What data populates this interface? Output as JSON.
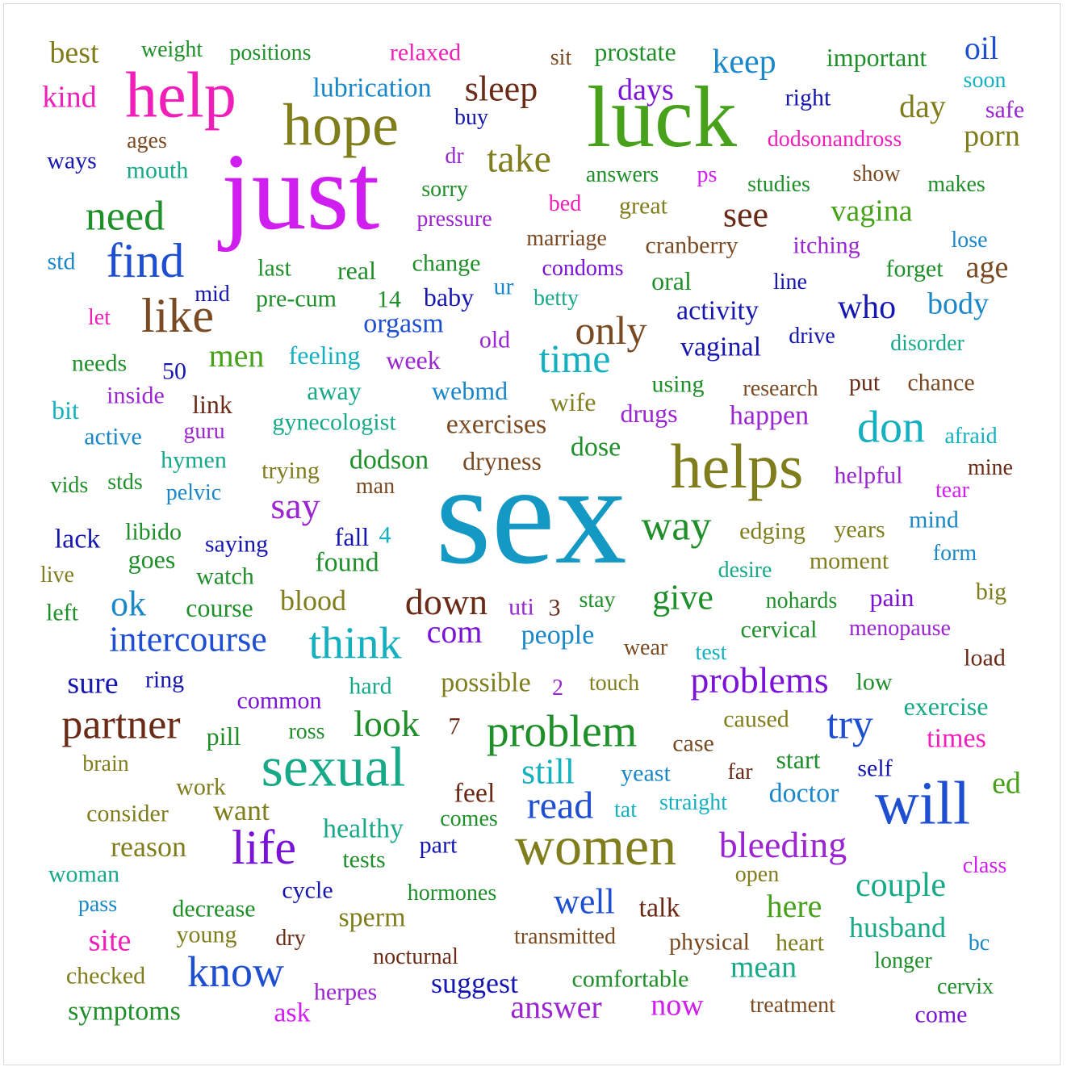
{
  "colors": {
    "teal": "#1399c4",
    "magenta": "#d01ef0",
    "green": "#47a11b",
    "olive": "#7f7d1c",
    "pink": "#f01fb9",
    "brown": "#6a2a16",
    "blue": "#1f4fd1",
    "purple": "#7b13d6",
    "navy": "#1616b0",
    "sea": "#18a989",
    "forest": "#1f8f2a",
    "skyblue": "#1a87c8",
    "tan": "#7a4a22",
    "violet": "#9a25d1",
    "cyan": "#15b0bf"
  },
  "words": [
    {
      "text": "sex",
      "color": "teal"
    },
    {
      "text": "just",
      "color": "magenta"
    },
    {
      "text": "luck",
      "color": "green"
    },
    {
      "text": "helps",
      "color": "olive"
    },
    {
      "text": "help",
      "color": "pink"
    },
    {
      "text": "hope",
      "color": "olive"
    },
    {
      "text": "will",
      "color": "blue"
    },
    {
      "text": "women",
      "color": "olive"
    },
    {
      "text": "sexual",
      "color": "sea"
    },
    {
      "text": "problem",
      "color": "forest"
    },
    {
      "text": "think",
      "color": "cyan"
    },
    {
      "text": "don",
      "color": "cyan"
    },
    {
      "text": "like",
      "color": "tan"
    },
    {
      "text": "find",
      "color": "blue"
    },
    {
      "text": "partner",
      "color": "brown"
    },
    {
      "text": "life",
      "color": "purple"
    },
    {
      "text": "intercourse",
      "color": "blue"
    },
    {
      "text": "bleeding",
      "color": "violet"
    },
    {
      "text": "need",
      "color": "forest"
    },
    {
      "text": "take",
      "color": "olive"
    },
    {
      "text": "know",
      "color": "blue"
    },
    {
      "text": "problems",
      "color": "purple"
    },
    {
      "text": "only",
      "color": "tan"
    },
    {
      "text": "time",
      "color": "cyan"
    },
    {
      "text": "try",
      "color": "blue"
    },
    {
      "text": "way",
      "color": "forest"
    },
    {
      "text": "say",
      "color": "violet"
    },
    {
      "text": "down",
      "color": "brown"
    },
    {
      "text": "well",
      "color": "blue"
    },
    {
      "text": "read",
      "color": "blue"
    },
    {
      "text": "see",
      "color": "brown"
    },
    {
      "text": "keep",
      "color": "skyblue"
    },
    {
      "text": "look",
      "color": "forest"
    },
    {
      "text": "give",
      "color": "forest"
    },
    {
      "text": "sleep",
      "color": "brown"
    },
    {
      "text": "still",
      "color": "cyan"
    },
    {
      "text": "couple",
      "color": "sea"
    },
    {
      "text": "who",
      "color": "navy"
    },
    {
      "text": "ok",
      "color": "skyblue"
    },
    {
      "text": "vagina",
      "color": "green"
    },
    {
      "text": "body",
      "color": "skyblue"
    },
    {
      "text": "com",
      "color": "purple"
    },
    {
      "text": "here",
      "color": "green"
    },
    {
      "text": "husband",
      "color": "sea"
    },
    {
      "text": "mean",
      "color": "sea"
    },
    {
      "text": "answer",
      "color": "violet"
    },
    {
      "text": "reason",
      "color": "olive"
    },
    {
      "text": "day",
      "color": "olive"
    },
    {
      "text": "porn",
      "color": "olive"
    },
    {
      "text": "days",
      "color": "purple"
    },
    {
      "text": "orgasm",
      "color": "blue"
    },
    {
      "text": "men",
      "color": "green"
    },
    {
      "text": "oil",
      "color": "blue"
    },
    {
      "text": "best",
      "color": "olive"
    },
    {
      "text": "kind",
      "color": "pink"
    },
    {
      "text": "ed",
      "color": "green"
    },
    {
      "text": "sure",
      "color": "navy"
    },
    {
      "text": "exercises",
      "color": "tan"
    },
    {
      "text": "blood",
      "color": "olive"
    },
    {
      "text": "want",
      "color": "olive"
    },
    {
      "text": "talk",
      "color": "brown"
    },
    {
      "text": "people",
      "color": "skyblue"
    },
    {
      "text": "now",
      "color": "magenta"
    },
    {
      "text": "suggest",
      "color": "navy"
    },
    {
      "text": "vaginal",
      "color": "navy"
    },
    {
      "text": "activity",
      "color": "navy"
    },
    {
      "text": "lubrication",
      "color": "skyblue"
    },
    {
      "text": "dodson",
      "color": "forest"
    },
    {
      "text": "sperm",
      "color": "olive"
    },
    {
      "text": "site",
      "color": "pink"
    },
    {
      "text": "age",
      "color": "tan"
    },
    {
      "text": "prostate",
      "color": "forest"
    },
    {
      "text": "important",
      "color": "forest"
    },
    {
      "text": "healthy",
      "color": "sea"
    },
    {
      "text": "doctor",
      "color": "skyblue"
    },
    {
      "text": "found",
      "color": "forest"
    },
    {
      "text": "symptoms",
      "color": "forest"
    },
    {
      "text": "possible",
      "color": "olive"
    },
    {
      "text": "webmd",
      "color": "skyblue"
    },
    {
      "text": "happen",
      "color": "violet"
    },
    {
      "text": "dryness",
      "color": "tan"
    },
    {
      "text": "dose",
      "color": "forest"
    },
    {
      "text": "pain",
      "color": "purple"
    },
    {
      "text": "start",
      "color": "forest"
    },
    {
      "text": "exercise",
      "color": "sea"
    },
    {
      "text": "times",
      "color": "pink"
    },
    {
      "text": "wife",
      "color": "olive"
    },
    {
      "text": "drugs",
      "color": "violet"
    },
    {
      "text": "feeling",
      "color": "cyan"
    },
    {
      "text": "oral",
      "color": "forest"
    },
    {
      "text": "baby",
      "color": "navy"
    },
    {
      "text": "away",
      "color": "sea"
    },
    {
      "text": "gynecologist",
      "color": "sea"
    },
    {
      "text": "helpful",
      "color": "violet"
    },
    {
      "text": "chance",
      "color": "tan"
    },
    {
      "text": "put",
      "color": "brown"
    },
    {
      "text": "years",
      "color": "olive"
    },
    {
      "text": "moment",
      "color": "olive"
    },
    {
      "text": "edging",
      "color": "olive"
    },
    {
      "text": "relaxed",
      "color": "pink"
    },
    {
      "text": "great",
      "color": "olive"
    },
    {
      "text": "marriage",
      "color": "tan"
    },
    {
      "text": "cranberry",
      "color": "tan"
    },
    {
      "text": "itching",
      "color": "violet"
    },
    {
      "text": "pressure",
      "color": "violet"
    },
    {
      "text": "condoms",
      "color": "purple"
    },
    {
      "text": "change",
      "color": "forest"
    },
    {
      "text": "real",
      "color": "forest"
    },
    {
      "text": "last",
      "color": "forest"
    },
    {
      "text": "pre-cum",
      "color": "forest"
    },
    {
      "text": "link",
      "color": "brown"
    },
    {
      "text": "bit",
      "color": "cyan"
    },
    {
      "text": "week",
      "color": "violet"
    },
    {
      "text": "using",
      "color": "forest"
    },
    {
      "text": "research",
      "color": "tan"
    },
    {
      "text": "disorder",
      "color": "sea"
    },
    {
      "text": "afraid",
      "color": "cyan"
    },
    {
      "text": "mine",
      "color": "brown"
    },
    {
      "text": "mind",
      "color": "skyblue"
    },
    {
      "text": "form",
      "color": "skyblue"
    },
    {
      "text": "desire",
      "color": "sea"
    },
    {
      "text": "nohards",
      "color": "forest"
    },
    {
      "text": "big",
      "color": "olive"
    },
    {
      "text": "cervical",
      "color": "forest"
    },
    {
      "text": "menopause",
      "color": "violet"
    },
    {
      "text": "wear",
      "color": "tan"
    },
    {
      "text": "test",
      "color": "cyan"
    },
    {
      "text": "load",
      "color": "brown"
    },
    {
      "text": "low",
      "color": "forest"
    },
    {
      "text": "caused",
      "color": "olive"
    },
    {
      "text": "case",
      "color": "tan"
    },
    {
      "text": "self",
      "color": "navy"
    },
    {
      "text": "far",
      "color": "brown"
    },
    {
      "text": "yeast",
      "color": "skyblue"
    },
    {
      "text": "straight",
      "color": "cyan"
    },
    {
      "text": "tat",
      "color": "cyan"
    },
    {
      "text": "comes",
      "color": "forest"
    },
    {
      "text": "feel",
      "color": "brown"
    },
    {
      "text": "part",
      "color": "navy"
    },
    {
      "text": "tests",
      "color": "forest"
    },
    {
      "text": "open",
      "color": "olive"
    },
    {
      "text": "class",
      "color": "magenta"
    },
    {
      "text": "hormones",
      "color": "forest"
    },
    {
      "text": "transmitted",
      "color": "tan"
    },
    {
      "text": "physical",
      "color": "tan"
    },
    {
      "text": "heart",
      "color": "olive"
    },
    {
      "text": "longer",
      "color": "forest"
    },
    {
      "text": "bc",
      "color": "skyblue"
    },
    {
      "text": "cervix",
      "color": "forest"
    },
    {
      "text": "treatment",
      "color": "tan"
    },
    {
      "text": "come",
      "color": "purple"
    },
    {
      "text": "comfortable",
      "color": "forest"
    },
    {
      "text": "nocturnal",
      "color": "brown"
    },
    {
      "text": "herpes",
      "color": "violet"
    },
    {
      "text": "ask",
      "color": "magenta"
    },
    {
      "text": "dry",
      "color": "brown"
    },
    {
      "text": "young",
      "color": "olive"
    },
    {
      "text": "decrease",
      "color": "forest"
    },
    {
      "text": "cycle",
      "color": "navy"
    },
    {
      "text": "checked",
      "color": "olive"
    },
    {
      "text": "pass",
      "color": "skyblue"
    },
    {
      "text": "woman",
      "color": "sea"
    },
    {
      "text": "consider",
      "color": "olive"
    },
    {
      "text": "work",
      "color": "olive"
    },
    {
      "text": "brain",
      "color": "olive"
    },
    {
      "text": "pill",
      "color": "forest"
    },
    {
      "text": "ross",
      "color": "forest"
    },
    {
      "text": "common",
      "color": "purple"
    },
    {
      "text": "ring",
      "color": "navy"
    },
    {
      "text": "hard",
      "color": "sea"
    },
    {
      "text": "touch",
      "color": "olive"
    },
    {
      "text": "2",
      "color": "violet"
    },
    {
      "text": "7",
      "color": "brown"
    },
    {
      "text": "course",
      "color": "forest"
    },
    {
      "text": "watch",
      "color": "forest"
    },
    {
      "text": "left",
      "color": "forest"
    },
    {
      "text": "live",
      "color": "olive"
    },
    {
      "text": "goes",
      "color": "forest"
    },
    {
      "text": "libido",
      "color": "forest"
    },
    {
      "text": "lack",
      "color": "navy"
    },
    {
      "text": "saying",
      "color": "navy"
    },
    {
      "text": "fall",
      "color": "navy"
    },
    {
      "text": "4",
      "color": "cyan"
    },
    {
      "text": "uti",
      "color": "violet"
    },
    {
      "text": "3",
      "color": "brown"
    },
    {
      "text": "stay",
      "color": "forest"
    },
    {
      "text": "vids",
      "color": "forest"
    },
    {
      "text": "stds",
      "color": "forest"
    },
    {
      "text": "pelvic",
      "color": "skyblue"
    },
    {
      "text": "hymen",
      "color": "sea"
    },
    {
      "text": "trying",
      "color": "olive"
    },
    {
      "text": "man",
      "color": "tan"
    },
    {
      "text": "guru",
      "color": "violet"
    },
    {
      "text": "active",
      "color": "skyblue"
    },
    {
      "text": "inside",
      "color": "violet"
    },
    {
      "text": "50",
      "color": "navy"
    },
    {
      "text": "needs",
      "color": "forest"
    },
    {
      "text": "old",
      "color": "violet"
    },
    {
      "text": "let",
      "color": "pink"
    },
    {
      "text": "mid",
      "color": "navy"
    },
    {
      "text": "14",
      "color": "forest"
    },
    {
      "text": "ur",
      "color": "skyblue"
    },
    {
      "text": "betty",
      "color": "sea"
    },
    {
      "text": "std",
      "color": "skyblue"
    },
    {
      "text": "ways",
      "color": "navy"
    },
    {
      "text": "mouth",
      "color": "sea"
    },
    {
      "text": "ages",
      "color": "tan"
    },
    {
      "text": "weight",
      "color": "forest"
    },
    {
      "text": "positions",
      "color": "forest"
    },
    {
      "text": "buy",
      "color": "navy"
    },
    {
      "text": "dr",
      "color": "violet"
    },
    {
      "text": "sorry",
      "color": "forest"
    },
    {
      "text": "bed",
      "color": "pink"
    },
    {
      "text": "ps",
      "color": "magenta"
    },
    {
      "text": "answers",
      "color": "forest"
    },
    {
      "text": "studies",
      "color": "forest"
    },
    {
      "text": "show",
      "color": "tan"
    },
    {
      "text": "makes",
      "color": "forest"
    },
    {
      "text": "sit",
      "color": "tan"
    },
    {
      "text": "right",
      "color": "navy"
    },
    {
      "text": "dodsonandross",
      "color": "pink"
    },
    {
      "text": "soon",
      "color": "cyan"
    },
    {
      "text": "safe",
      "color": "violet"
    },
    {
      "text": "lose",
      "color": "skyblue"
    },
    {
      "text": "forget",
      "color": "forest"
    },
    {
      "text": "line",
      "color": "navy"
    },
    {
      "text": "drive",
      "color": "navy"
    },
    {
      "text": "tear",
      "color": "magenta"
    }
  ]
}
